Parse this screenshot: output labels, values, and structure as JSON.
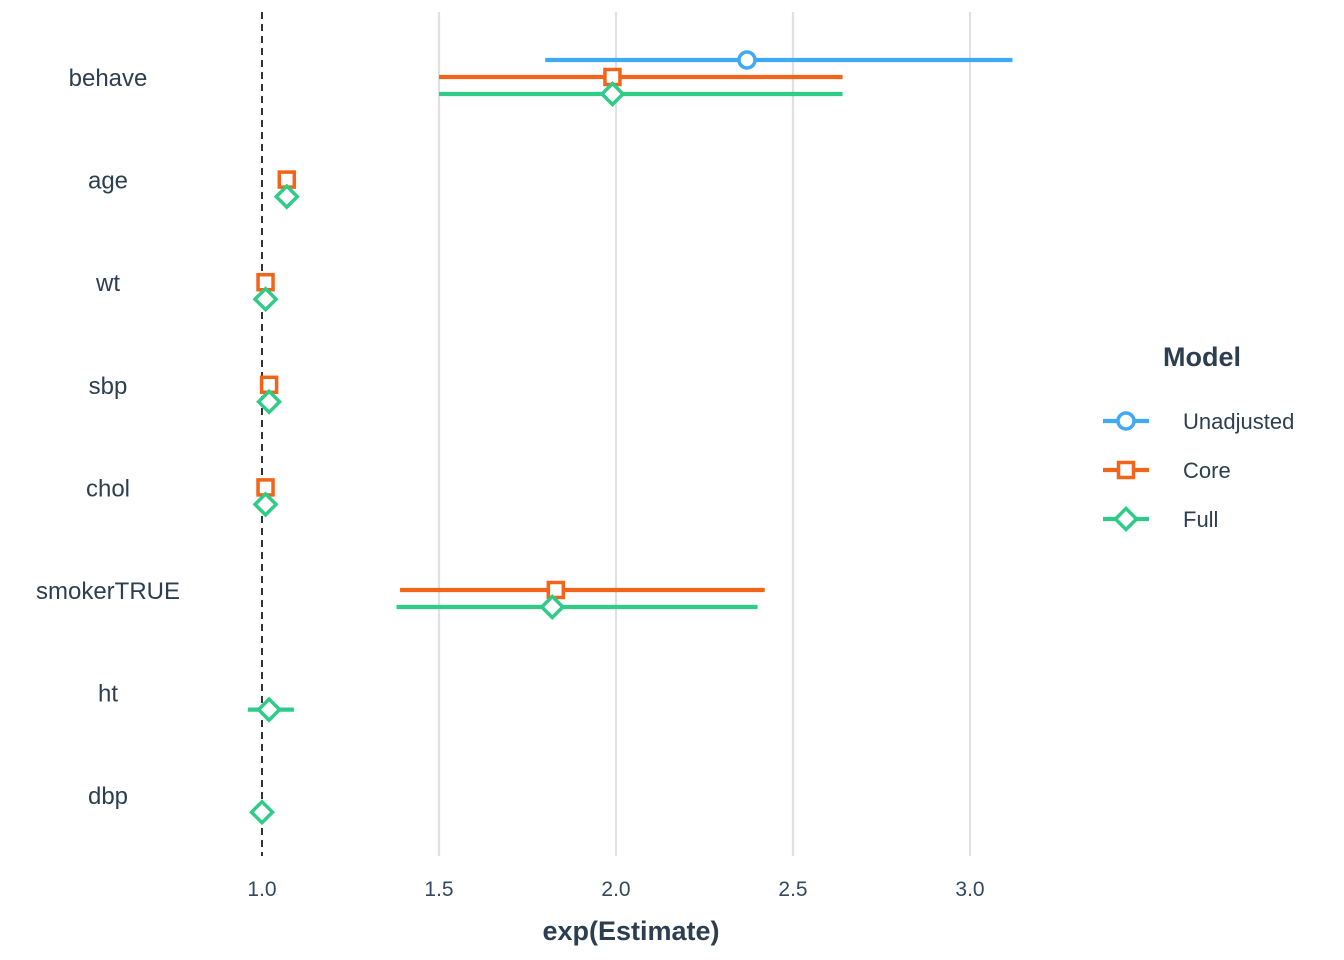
{
  "chart_data": {
    "type": "forest",
    "xlabel": "exp(Estimate)",
    "ylabel": "",
    "xlim": [
      0.97,
      3.32
    ],
    "x_ticks": [
      1.0,
      1.5,
      2.0,
      2.5,
      3.0
    ],
    "x_tick_labels": [
      "1.0",
      "1.5",
      "2.0",
      "2.5",
      "3.0"
    ],
    "reference_line": 1.0,
    "grid": "vertical major gridlines",
    "categories": [
      "behave",
      "age",
      "wt",
      "sbp",
      "chol",
      "smokerTRUE",
      "ht",
      "dbp"
    ],
    "legend": {
      "title": "Model",
      "placement": "right"
    },
    "series": [
      {
        "name": "Unadjusted",
        "color": "#3fa9f5",
        "marker": "circle",
        "points": [
          {
            "term": "behave",
            "estimate": 2.37,
            "low": 1.8,
            "high": 3.12
          }
        ]
      },
      {
        "name": "Core",
        "color": "#f26419",
        "marker": "square",
        "points": [
          {
            "term": "behave",
            "estimate": 1.99,
            "low": 1.5,
            "high": 2.64
          },
          {
            "term": "age",
            "estimate": 1.07,
            "low": 1.06,
            "high": 1.08
          },
          {
            "term": "wt",
            "estimate": 1.01,
            "low": 1.0,
            "high": 1.02
          },
          {
            "term": "sbp",
            "estimate": 1.02,
            "low": 1.01,
            "high": 1.03
          },
          {
            "term": "chol",
            "estimate": 1.01,
            "low": 1.005,
            "high": 1.015
          },
          {
            "term": "smokerTRUE",
            "estimate": 1.83,
            "low": 1.39,
            "high": 2.42
          }
        ]
      },
      {
        "name": "Full",
        "color": "#2ecc87",
        "marker": "diamond",
        "points": [
          {
            "term": "behave",
            "estimate": 1.99,
            "low": 1.5,
            "high": 2.64
          },
          {
            "term": "age",
            "estimate": 1.07,
            "low": 1.06,
            "high": 1.08
          },
          {
            "term": "wt",
            "estimate": 1.01,
            "low": 1.0,
            "high": 1.02
          },
          {
            "term": "sbp",
            "estimate": 1.02,
            "low": 1.01,
            "high": 1.03
          },
          {
            "term": "chol",
            "estimate": 1.01,
            "low": 1.005,
            "high": 1.015
          },
          {
            "term": "smokerTRUE",
            "estimate": 1.82,
            "low": 1.38,
            "high": 2.4
          },
          {
            "term": "ht",
            "estimate": 1.02,
            "low": 0.96,
            "high": 1.09
          },
          {
            "term": "dbp",
            "estimate": 1.0,
            "low": 0.99,
            "high": 1.01
          }
        ]
      }
    ]
  }
}
